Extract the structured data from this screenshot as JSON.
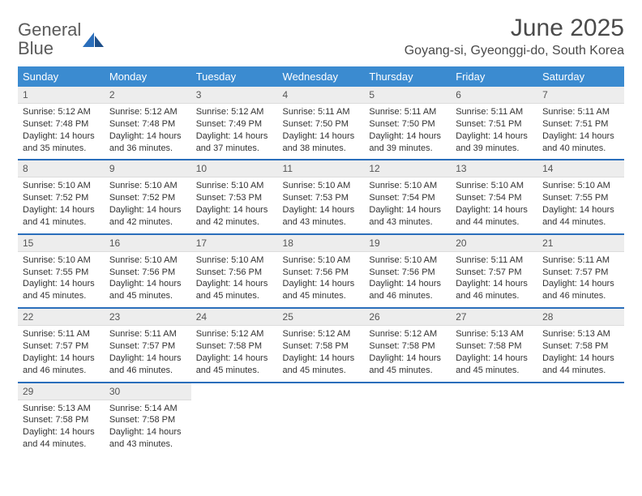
{
  "brand": {
    "general": "General",
    "blue": "Blue"
  },
  "title": "June 2025",
  "location": "Goyang-si, Gyeonggi-do, South Korea",
  "colors": {
    "header_bg": "#3b8bd0",
    "header_text": "#ffffff",
    "daynum_bg": "#ededed",
    "week_border": "#2a6ebb",
    "brand_gray": "#5a5a5a",
    "brand_blue": "#2a6ebb"
  },
  "day_names": [
    "Sunday",
    "Monday",
    "Tuesday",
    "Wednesday",
    "Thursday",
    "Friday",
    "Saturday"
  ],
  "weeks": [
    [
      {
        "n": "1",
        "sr": "5:12 AM",
        "ss": "7:48 PM",
        "dl": "14 hours and 35 minutes."
      },
      {
        "n": "2",
        "sr": "5:12 AM",
        "ss": "7:48 PM",
        "dl": "14 hours and 36 minutes."
      },
      {
        "n": "3",
        "sr": "5:12 AM",
        "ss": "7:49 PM",
        "dl": "14 hours and 37 minutes."
      },
      {
        "n": "4",
        "sr": "5:11 AM",
        "ss": "7:50 PM",
        "dl": "14 hours and 38 minutes."
      },
      {
        "n": "5",
        "sr": "5:11 AM",
        "ss": "7:50 PM",
        "dl": "14 hours and 39 minutes."
      },
      {
        "n": "6",
        "sr": "5:11 AM",
        "ss": "7:51 PM",
        "dl": "14 hours and 39 minutes."
      },
      {
        "n": "7",
        "sr": "5:11 AM",
        "ss": "7:51 PM",
        "dl": "14 hours and 40 minutes."
      }
    ],
    [
      {
        "n": "8",
        "sr": "5:10 AM",
        "ss": "7:52 PM",
        "dl": "14 hours and 41 minutes."
      },
      {
        "n": "9",
        "sr": "5:10 AM",
        "ss": "7:52 PM",
        "dl": "14 hours and 42 minutes."
      },
      {
        "n": "10",
        "sr": "5:10 AM",
        "ss": "7:53 PM",
        "dl": "14 hours and 42 minutes."
      },
      {
        "n": "11",
        "sr": "5:10 AM",
        "ss": "7:53 PM",
        "dl": "14 hours and 43 minutes."
      },
      {
        "n": "12",
        "sr": "5:10 AM",
        "ss": "7:54 PM",
        "dl": "14 hours and 43 minutes."
      },
      {
        "n": "13",
        "sr": "5:10 AM",
        "ss": "7:54 PM",
        "dl": "14 hours and 44 minutes."
      },
      {
        "n": "14",
        "sr": "5:10 AM",
        "ss": "7:55 PM",
        "dl": "14 hours and 44 minutes."
      }
    ],
    [
      {
        "n": "15",
        "sr": "5:10 AM",
        "ss": "7:55 PM",
        "dl": "14 hours and 45 minutes."
      },
      {
        "n": "16",
        "sr": "5:10 AM",
        "ss": "7:56 PM",
        "dl": "14 hours and 45 minutes."
      },
      {
        "n": "17",
        "sr": "5:10 AM",
        "ss": "7:56 PM",
        "dl": "14 hours and 45 minutes."
      },
      {
        "n": "18",
        "sr": "5:10 AM",
        "ss": "7:56 PM",
        "dl": "14 hours and 45 minutes."
      },
      {
        "n": "19",
        "sr": "5:10 AM",
        "ss": "7:56 PM",
        "dl": "14 hours and 46 minutes."
      },
      {
        "n": "20",
        "sr": "5:11 AM",
        "ss": "7:57 PM",
        "dl": "14 hours and 46 minutes."
      },
      {
        "n": "21",
        "sr": "5:11 AM",
        "ss": "7:57 PM",
        "dl": "14 hours and 46 minutes."
      }
    ],
    [
      {
        "n": "22",
        "sr": "5:11 AM",
        "ss": "7:57 PM",
        "dl": "14 hours and 46 minutes."
      },
      {
        "n": "23",
        "sr": "5:11 AM",
        "ss": "7:57 PM",
        "dl": "14 hours and 46 minutes."
      },
      {
        "n": "24",
        "sr": "5:12 AM",
        "ss": "7:58 PM",
        "dl": "14 hours and 45 minutes."
      },
      {
        "n": "25",
        "sr": "5:12 AM",
        "ss": "7:58 PM",
        "dl": "14 hours and 45 minutes."
      },
      {
        "n": "26",
        "sr": "5:12 AM",
        "ss": "7:58 PM",
        "dl": "14 hours and 45 minutes."
      },
      {
        "n": "27",
        "sr": "5:13 AM",
        "ss": "7:58 PM",
        "dl": "14 hours and 45 minutes."
      },
      {
        "n": "28",
        "sr": "5:13 AM",
        "ss": "7:58 PM",
        "dl": "14 hours and 44 minutes."
      }
    ],
    [
      {
        "n": "29",
        "sr": "5:13 AM",
        "ss": "7:58 PM",
        "dl": "14 hours and 44 minutes."
      },
      {
        "n": "30",
        "sr": "5:14 AM",
        "ss": "7:58 PM",
        "dl": "14 hours and 43 minutes."
      },
      null,
      null,
      null,
      null,
      null
    ]
  ],
  "labels": {
    "sunrise": "Sunrise:",
    "sunset": "Sunset:",
    "daylight": "Daylight:"
  },
  "typography": {
    "title_fontsize": 30,
    "location_fontsize": 16,
    "th_fontsize": 13,
    "cell_fontsize": 11
  }
}
